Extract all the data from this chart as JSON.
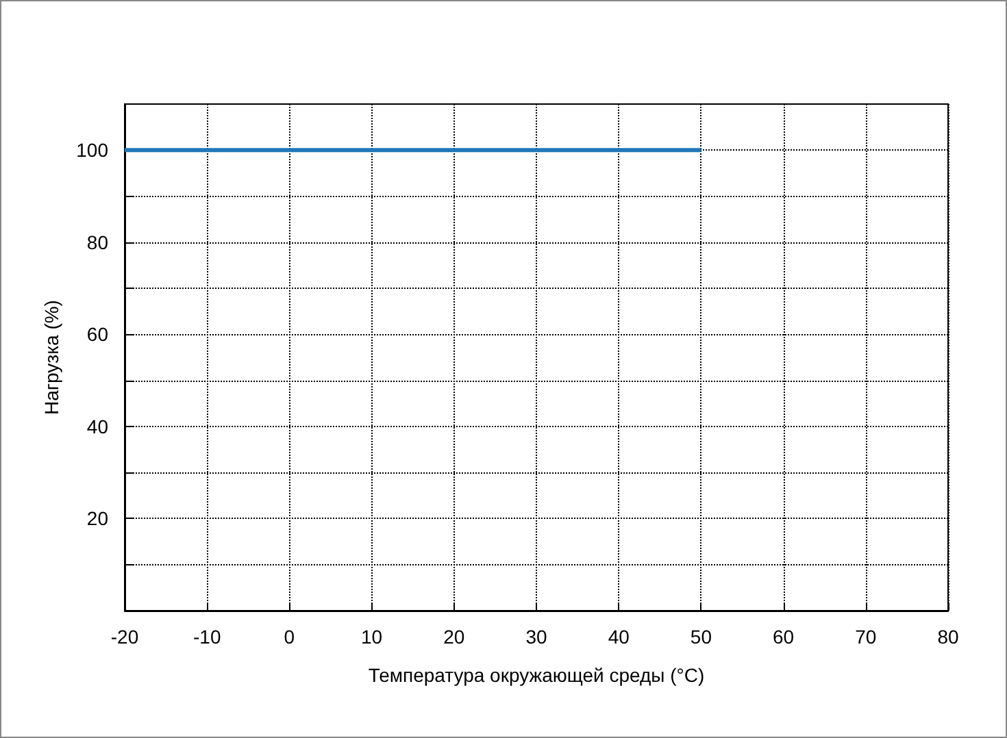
{
  "chart_data": {
    "type": "line",
    "xlabel": "Температура окружающей среды (°C)",
    "ylabel": "Нагрузка (%)",
    "x": [
      -20,
      50
    ],
    "series": [
      {
        "color": "#1f78b8",
        "values": [
          100,
          100
        ]
      }
    ],
    "xlim": [
      -20,
      80
    ],
    "xticks": [
      -20,
      -10,
      0,
      10,
      20,
      30,
      40,
      50,
      60,
      70,
      80
    ],
    "ylim": [
      0,
      110
    ],
    "yticks": [
      {
        "value": 10,
        "label": null
      },
      20,
      {
        "value": 30,
        "label": null
      },
      40,
      {
        "value": 50,
        "label": null
      },
      60,
      {
        "value": 70,
        "label": null
      },
      80,
      {
        "value": 90,
        "label": null
      },
      100
    ],
    "grid": true,
    "line_style": "solid",
    "marker": "none"
  }
}
